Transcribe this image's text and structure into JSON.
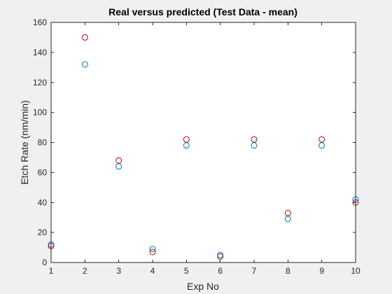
{
  "chart_data": {
    "type": "scatter",
    "title": "Real versus predicted (Test Data - mean)",
    "xlabel": "Exp No",
    "ylabel": "Etch Rate (nm/min)",
    "xlim": [
      1,
      10
    ],
    "ylim": [
      0,
      160
    ],
    "xticks": [
      "1",
      "2",
      "3",
      "4",
      "5",
      "6",
      "7",
      "8",
      "9",
      "10"
    ],
    "yticks": [
      "0",
      "20",
      "40",
      "60",
      "80",
      "100",
      "120",
      "140",
      "160"
    ],
    "grid": false,
    "legend": "none",
    "x": [
      1,
      2,
      3,
      4,
      5,
      6,
      7,
      8,
      9,
      10
    ],
    "series": [
      {
        "color": "#c00000",
        "marker": "circle",
        "values": [
          11,
          150,
          68,
          7,
          82,
          4,
          82,
          33,
          82,
          40
        ]
      },
      {
        "color": "#0072bd",
        "marker": "circle",
        "values": [
          12,
          132,
          64,
          9,
          78,
          5,
          78,
          29,
          78,
          42
        ]
      }
    ]
  }
}
